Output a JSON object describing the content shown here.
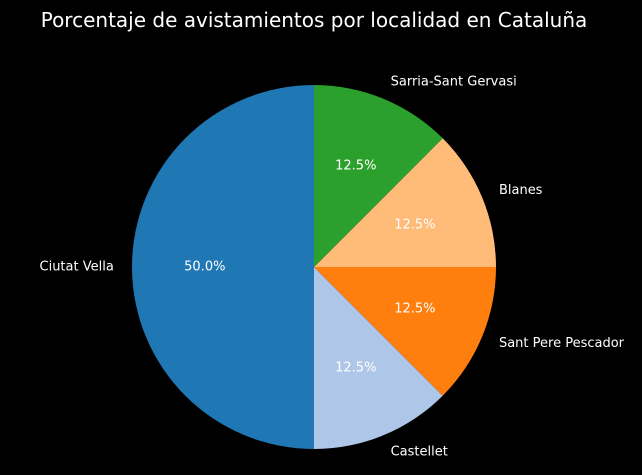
{
  "chart_data": {
    "type": "pie",
    "title": "Porcentaje de avistamientos por localidad en Cataluña",
    "categories": [
      "Ciutat Vella",
      "Castellet",
      "Sant Pere Pescador",
      "Blanes",
      "Sarria-Sant Gervasi"
    ],
    "values": [
      50.0,
      12.5,
      12.5,
      12.5,
      12.5
    ],
    "percent_labels": [
      "50.0%",
      "12.5%",
      "12.5%",
      "12.5%",
      "12.5%"
    ],
    "colors": [
      "#1f77b4",
      "#aec7e8",
      "#ff7f0e",
      "#ffbb78",
      "#2ca02c"
    ],
    "start_angle_deg": 90,
    "direction": "counterclockwise",
    "background": "#000000",
    "text_color": "#ffffff"
  }
}
